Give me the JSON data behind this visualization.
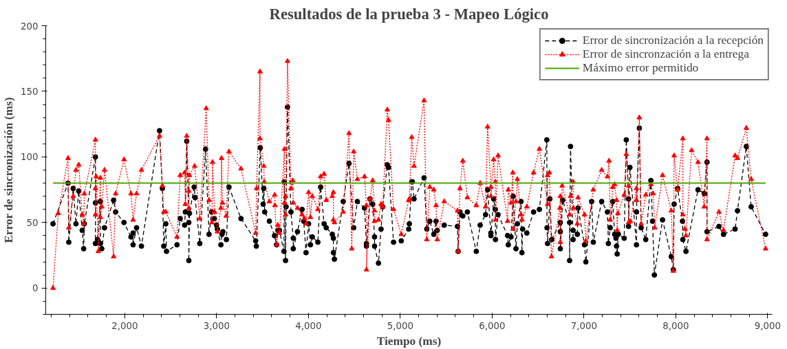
{
  "chart_data": {
    "type": "line",
    "title": "Resultados de la prueba 3 - Mapeo Lógico",
    "xlabel": "Tiempo (ms)",
    "ylabel": "Error de sincronización (ms)",
    "xlim": [
      1140,
      9050
    ],
    "ylim": [
      -20,
      200
    ],
    "xticks": [
      {
        "value": 2000,
        "label": "2,000"
      },
      {
        "value": 3000,
        "label": "3,000"
      },
      {
        "value": 4000,
        "label": "4,000"
      },
      {
        "value": 5000,
        "label": "5,000"
      },
      {
        "value": 6000,
        "label": "6,000"
      },
      {
        "value": 7000,
        "label": "7,000"
      },
      {
        "value": 8000,
        "label": "8,000"
      },
      {
        "value": 9000,
        "label": "9,000"
      }
    ],
    "yticks": [
      0,
      50,
      100,
      150,
      200
    ],
    "grid": false,
    "legend": "top right",
    "series": [
      {
        "name": "Error de sincronización a la recepción",
        "color": "#000000",
        "marker": "circle",
        "line_style": "dashed",
        "x": [
          1219,
          1383,
          1391,
          1439,
          1469,
          1499,
          1537,
          1553,
          1560,
          1681,
          1681,
          1681,
          1704,
          1735,
          1735,
          1750,
          1780,
          1879,
          1901,
          1992,
          2068,
          2091,
          2091,
          2129,
          2182,
          2379,
          2410,
          2425,
          2447,
          2455,
          2569,
          2604,
          2652,
          2660,
          2675,
          2698,
          2698,
          2705,
          2756,
          2766,
          2817,
          2880,
          2918,
          2946,
          2976,
          2999,
          3009,
          3047,
          3059,
          3069,
          3107,
          3135,
          3266,
          3426,
          3433,
          3476,
          3507,
          3514,
          3524,
          3575,
          3631,
          3653,
          3668,
          3684,
          3734,
          3737,
          3751,
          3757,
          3772,
          3810,
          3835,
          3835,
          3881,
          3931,
          3949,
          3974,
          4002,
          4022,
          4042,
          4103,
          4133,
          4171,
          4194,
          4260,
          4272,
          4272,
          4283,
          4379,
          4442,
          4493,
          4533,
          4611,
          4632,
          4632,
          4670,
          4700,
          4720,
          4720,
          4763,
          4791,
          4809,
          4859,
          4872,
          4927,
          5011,
          5092,
          5099,
          5125,
          5132,
          5150,
          5259,
          5289,
          5322,
          5365,
          5390,
          5403,
          5479,
          5623,
          5630,
          5650,
          5681,
          5731,
          5828,
          5870,
          5929,
          5951,
          5987,
          5987,
          6017,
          6035,
          6037,
          6065,
          6169,
          6176,
          6206,
          6229,
          6260,
          6275,
          6315,
          6325,
          6333,
          6378,
          6452,
          6515,
          6596,
          6598,
          6604,
          6629,
          6649,
          6743,
          6743,
          6743,
          6768,
          6844,
          6844,
          6854,
          6882,
          6882,
          6928,
          6936,
          7006,
          7021,
          7084,
          7102,
          7193,
          7256,
          7266,
          7286,
          7314,
          7334,
          7349,
          7355,
          7362,
          7375,
          7438,
          7461,
          7486,
          7486,
          7501,
          7572,
          7572,
          7603,
          7623,
          7673,
          7729,
          7747,
          7767,
          7856,
          7951,
          7974,
          7982,
          8020,
          8073,
          8077,
          8111,
          8242,
          8310,
          8340,
          8340,
          8470,
          8520,
          8646,
          8672,
          8768,
          8821,
          8978
        ],
        "values": [
          49,
          80,
          35,
          76,
          49,
          74,
          44,
          30,
          49,
          100,
          65,
          34,
          37,
          66,
          34,
          30,
          46,
          67,
          58,
          50,
          39,
          42,
          33,
          46,
          32,
          120,
          76,
          32,
          49,
          28,
          33,
          53,
          48,
          58,
          112,
          50,
          21,
          57,
          77,
          69,
          34,
          106,
          41,
          58,
          53,
          48,
          45,
          33,
          41,
          43,
          37,
          77,
          53,
          36,
          32,
          107,
          64,
          76,
          58,
          51,
          40,
          33,
          44,
          44,
          28,
          81,
          21,
          62,
          138,
          58,
          38,
          30,
          43,
          60,
          51,
          27,
          49,
          33,
          39,
          35,
          77,
          49,
          46,
          41,
          38,
          27,
          22,
          66,
          95,
          46,
          66,
          61,
          34,
          32,
          68,
          64,
          39,
          32,
          19,
          45,
          62,
          94,
          92,
          35,
          36,
          45,
          49,
          81,
          81,
          68,
          84,
          45,
          51,
          41,
          51,
          44,
          48,
          47,
          28,
          58,
          55,
          58,
          28,
          48,
          56,
          75,
          42,
          40,
          68,
          60,
          37,
          56,
          40,
          33,
          39,
          70,
          30,
          49,
          66,
          27,
          45,
          42,
          58,
          60,
          113,
          46,
          34,
          68,
          37,
          50,
          43,
          30,
          67,
          50,
          21,
          108,
          37,
          44,
          41,
          61,
          33,
          20,
          66,
          35,
          66,
          58,
          34,
          46,
          66,
          41,
          38,
          32,
          26,
          41,
          38,
          113,
          68,
          47,
          92,
          33,
          58,
          122,
          46,
          37,
          82,
          51,
          10,
          52,
          24,
          14,
          64,
          76,
          51,
          37,
          28,
          75,
          72,
          96,
          43,
          47,
          41,
          45,
          59,
          108,
          62,
          41
        ]
      },
      {
        "name": "Error de sincronzación a la entrega",
        "color": "#ff0000",
        "marker": "triangle",
        "line_style": "dotted",
        "x": [
          1219,
          1276,
          1383,
          1391,
          1439,
          1469,
          1499,
          1537,
          1553,
          1560,
          1681,
          1681,
          1681,
          1689,
          1712,
          1735,
          1735,
          1750,
          1780,
          1879,
          1901,
          1992,
          2068,
          2091,
          2129,
          2182,
          2379,
          2410,
          2425,
          2447,
          2569,
          2604,
          2652,
          2660,
          2675,
          2698,
          2698,
          2705,
          2761,
          2817,
          2887,
          2918,
          2950,
          2956,
          2978,
          3009,
          3047,
          3054,
          3064,
          3105,
          3135,
          3266,
          3426,
          3436,
          3473,
          3473,
          3514,
          3519,
          3575,
          3633,
          3635,
          3656,
          3666,
          3686,
          3739,
          3739,
          3752,
          3752,
          3772,
          3810,
          3830,
          3835,
          3881,
          3931,
          3957,
          3974,
          4002,
          4022,
          4042,
          4103,
          4133,
          4171,
          4194,
          4260,
          4272,
          4272,
          4283,
          4379,
          4442,
          4472,
          4493,
          4533,
          4611,
          4632,
          4632,
          4670,
          4700,
          4720,
          4720,
          4763,
          4791,
          4809,
          4859,
          4872,
          4927,
          5011,
          5092,
          5099,
          5125,
          5150,
          5259,
          5289,
          5322,
          5365,
          5390,
          5403,
          5479,
          5623,
          5630,
          5650,
          5681,
          5731,
          5828,
          5870,
          5929,
          5951,
          5987,
          5987,
          6017,
          6035,
          6037,
          6065,
          6169,
          6176,
          6206,
          6226,
          6229,
          6260,
          6275,
          6315,
          6325,
          6378,
          6452,
          6515,
          6604,
          6604,
          6624,
          6647,
          6738,
          6743,
          6743,
          6763,
          6844,
          6854,
          6882,
          6886,
          6928,
          6936,
          7006,
          7021,
          7102,
          7193,
          7256,
          7273,
          7286,
          7314,
          7334,
          7355,
          7362,
          7370,
          7438,
          7461,
          7486,
          7486,
          7506,
          7572,
          7572,
          7603,
          7623,
          7673,
          7729,
          7754,
          7771,
          7856,
          7951,
          7974,
          7982,
          8020,
          8077,
          8077,
          8100,
          8111,
          8172,
          8242,
          8310,
          8340,
          8340,
          8470,
          8520,
          8646,
          8672,
          8768,
          8821,
          8978
        ],
        "values": [
          0,
          57,
          99,
          46,
          70,
          90,
          94,
          56,
          49,
          72,
          113,
          76,
          56,
          85,
          28,
          84,
          54,
          62,
          90,
          24,
          72,
          98,
          72,
          52,
          72,
          90,
          116,
          78,
          58,
          58,
          39,
          86,
          88,
          64,
          116,
          74,
          61,
          86,
          93,
          53,
          137,
          67,
          50,
          96,
          58,
          43,
          61,
          99,
          65,
          55,
          104,
          91,
          42,
          76,
          165,
          114,
          93,
          81,
          66,
          71,
          63,
          33,
          48,
          42,
          106,
          65,
          70,
          56,
          173,
          76,
          82,
          65,
          61,
          56,
          53,
          49,
          73,
          54,
          70,
          60,
          85,
          87,
          67,
          70,
          73,
          52,
          50,
          58,
          118,
          30,
          104,
          83,
          85,
          63,
          14,
          68,
          82,
          59,
          51,
          52,
          64,
          62,
          136,
          128,
          60,
          41,
          67,
          68,
          115,
          93,
          143,
          37,
          77,
          75,
          63,
          37,
          66,
          59,
          28,
          76,
          97,
          69,
          63,
          80,
          62,
          123,
          77,
          70,
          98,
          81,
          52,
          101,
          51,
          75,
          65,
          88,
          45,
          66,
          83,
          56,
          52,
          62,
          88,
          106,
          64,
          86,
          88,
          24,
          61,
          70,
          35,
          78,
          56,
          70,
          81,
          61,
          49,
          69,
          56,
          36,
          75,
          90,
          85,
          97,
          52,
          77,
          79,
          67,
          44,
          57,
          71,
          102,
          78,
          50,
          51,
          76,
          67,
          130,
          49,
          71,
          79,
          72,
          46,
          86,
          59,
          13,
          101,
          75,
          114,
          56,
          45,
          40,
          105,
          96,
          62,
          114,
          37,
          58,
          44,
          101,
          99,
          122,
          83,
          30
        ]
      }
    ],
    "ref_lines": [
      {
        "axis": "y",
        "value": 80,
        "label": "Máximo error permitido",
        "color": "#4da600",
        "line_style": "solid"
      }
    ]
  }
}
